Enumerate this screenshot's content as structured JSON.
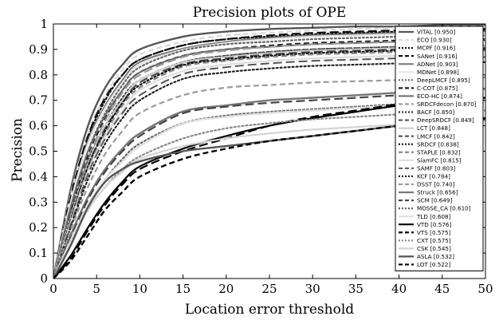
{
  "chart_data": {
    "type": "line",
    "title": "Precision plots of OPE",
    "xlabel": "Location error threshold",
    "ylabel": "Precision",
    "xlim": [
      0,
      50
    ],
    "ylim": [
      0,
      1
    ],
    "x_ticks": [
      "0",
      "5",
      "10",
      "15",
      "20",
      "25",
      "30",
      "35",
      "40",
      "45",
      "50"
    ],
    "y_ticks": [
      "0",
      "0.1",
      "0.2",
      "0.3",
      "0.4",
      "0.5",
      "0.6",
      "0.7",
      "0.8",
      "0.9",
      "1"
    ],
    "grid": false,
    "legend_position": "right",
    "x": [
      0,
      2,
      4,
      6,
      8,
      10,
      15,
      20,
      25,
      30,
      35,
      40,
      45,
      50
    ],
    "series": [
      {
        "name": "VITAL [0.950]",
        "color": "#555555",
        "dash": "solid",
        "width": 2.4,
        "values": [
          0,
          0.35,
          0.6,
          0.75,
          0.84,
          0.9,
          0.95,
          0.97,
          0.98,
          0.985,
          0.99,
          0.99,
          0.995,
          0.995
        ]
      },
      {
        "name": "ECO [0.930]",
        "color": "#d8d8d8",
        "dash": "dash",
        "width": 2.2,
        "values": [
          0,
          0.33,
          0.57,
          0.72,
          0.82,
          0.88,
          0.93,
          0.955,
          0.965,
          0.975,
          0.98,
          0.985,
          0.99,
          0.99
        ]
      },
      {
        "name": "MCPF [0.916]",
        "color": "#111111",
        "dash": "dot",
        "width": 2.2,
        "values": [
          0,
          0.3,
          0.55,
          0.7,
          0.8,
          0.86,
          0.916,
          0.94,
          0.95,
          0.96,
          0.965,
          0.97,
          0.975,
          0.975
        ]
      },
      {
        "name": "SANet [0.916]",
        "color": "#111111",
        "dash": "dashlong",
        "width": 2.2,
        "values": [
          0,
          0.32,
          0.56,
          0.71,
          0.8,
          0.86,
          0.916,
          0.94,
          0.955,
          0.965,
          0.97,
          0.975,
          0.98,
          0.98
        ]
      },
      {
        "name": "ADNet [0.903]",
        "color": "#777777",
        "dash": "solid",
        "width": 2.0,
        "values": [
          0,
          0.3,
          0.54,
          0.68,
          0.78,
          0.85,
          0.903,
          0.93,
          0.945,
          0.955,
          0.96,
          0.965,
          0.97,
          0.97
        ]
      },
      {
        "name": "MDNet [0.898]",
        "color": "#e6e6e6",
        "dash": "solid",
        "width": 2.2,
        "values": [
          0,
          0.3,
          0.53,
          0.67,
          0.77,
          0.84,
          0.898,
          0.925,
          0.94,
          0.95,
          0.955,
          0.96,
          0.965,
          0.965
        ]
      },
      {
        "name": "DeepLMCF [0.895]",
        "color": "#666666",
        "dash": "dot",
        "width": 2.2,
        "values": [
          0,
          0.27,
          0.5,
          0.65,
          0.76,
          0.83,
          0.895,
          0.92,
          0.93,
          0.94,
          0.945,
          0.95,
          0.955,
          0.955
        ]
      },
      {
        "name": "C-COT [0.875]",
        "color": "#222222",
        "dash": "dash",
        "width": 2.2,
        "values": [
          0,
          0.26,
          0.48,
          0.63,
          0.74,
          0.81,
          0.875,
          0.9,
          0.915,
          0.925,
          0.93,
          0.935,
          0.94,
          0.94
        ]
      },
      {
        "name": "ECO-HC [0.874]",
        "color": "#6a6a6a",
        "dash": "solid",
        "width": 2.0,
        "values": [
          0,
          0.28,
          0.5,
          0.64,
          0.74,
          0.81,
          0.874,
          0.9,
          0.91,
          0.92,
          0.925,
          0.93,
          0.935,
          0.935
        ]
      },
      {
        "name": "SRDCFdecon [0.870]",
        "color": "#999999",
        "dash": "dashlong",
        "width": 2.2,
        "values": [
          0,
          0.25,
          0.47,
          0.62,
          0.73,
          0.8,
          0.87,
          0.895,
          0.91,
          0.92,
          0.925,
          0.93,
          0.935,
          0.935
        ]
      },
      {
        "name": "BACF [0.850]",
        "color": "#333333",
        "dash": "dot",
        "width": 2.2,
        "values": [
          0,
          0.25,
          0.46,
          0.6,
          0.71,
          0.78,
          0.85,
          0.875,
          0.89,
          0.9,
          0.905,
          0.91,
          0.915,
          0.915
        ]
      },
      {
        "name": "DeepSRDCF [0.849]",
        "color": "#555555",
        "dash": "dash",
        "width": 2.2,
        "values": [
          0,
          0.24,
          0.45,
          0.6,
          0.7,
          0.78,
          0.849,
          0.875,
          0.89,
          0.9,
          0.905,
          0.91,
          0.915,
          0.915
        ]
      },
      {
        "name": "LCT [0.848]",
        "color": "#d0d0d0",
        "dash": "solid",
        "width": 2.2,
        "values": [
          0,
          0.24,
          0.45,
          0.6,
          0.7,
          0.78,
          0.848,
          0.87,
          0.885,
          0.895,
          0.9,
          0.905,
          0.91,
          0.91
        ]
      },
      {
        "name": "LMCF [0.842]",
        "color": "#444444",
        "dash": "dashlong",
        "width": 2.0,
        "values": [
          0,
          0.23,
          0.44,
          0.59,
          0.69,
          0.77,
          0.842,
          0.865,
          0.88,
          0.89,
          0.895,
          0.9,
          0.905,
          0.905
        ]
      },
      {
        "name": "SRDCF [0.838]",
        "color": "#111111",
        "dash": "dot",
        "width": 2.2,
        "values": [
          0,
          0.23,
          0.44,
          0.58,
          0.69,
          0.76,
          0.838,
          0.86,
          0.875,
          0.885,
          0.89,
          0.895,
          0.9,
          0.9
        ]
      },
      {
        "name": "STAPLE [0.832]",
        "color": "#888888",
        "dash": "dash",
        "width": 2.2,
        "values": [
          0,
          0.22,
          0.43,
          0.57,
          0.68,
          0.75,
          0.832,
          0.855,
          0.87,
          0.88,
          0.885,
          0.89,
          0.895,
          0.895
        ]
      },
      {
        "name": "SiamFC [0.815]",
        "color": "#dddddd",
        "dash": "solid",
        "width": 2.2,
        "values": [
          0,
          0.22,
          0.42,
          0.56,
          0.66,
          0.74,
          0.815,
          0.84,
          0.855,
          0.865,
          0.87,
          0.875,
          0.88,
          0.88
        ]
      },
      {
        "name": "SAMF [0.803]",
        "color": "#555555",
        "dash": "dashlong",
        "width": 2.0,
        "values": [
          0,
          0.21,
          0.41,
          0.55,
          0.65,
          0.72,
          0.803,
          0.83,
          0.845,
          0.855,
          0.86,
          0.865,
          0.87,
          0.87
        ]
      },
      {
        "name": "KCF [0.784]",
        "color": "#222222",
        "dash": "dot",
        "width": 2.2,
        "values": [
          0,
          0.2,
          0.39,
          0.53,
          0.63,
          0.7,
          0.784,
          0.81,
          0.825,
          0.835,
          0.84,
          0.845,
          0.85,
          0.85
        ]
      },
      {
        "name": "DSST [0.740]",
        "color": "#9a9a9a",
        "dash": "dash",
        "width": 2.2,
        "values": [
          0,
          0.19,
          0.36,
          0.49,
          0.58,
          0.65,
          0.72,
          0.75,
          0.76,
          0.77,
          0.775,
          0.78,
          0.79,
          0.79
        ]
      },
      {
        "name": "Struck [0.656]",
        "color": "#777777",
        "dash": "solid",
        "width": 2.4,
        "values": [
          0,
          0.17,
          0.32,
          0.43,
          0.51,
          0.57,
          0.656,
          0.68,
          0.7,
          0.71,
          0.72,
          0.73,
          0.74,
          0.745
        ]
      },
      {
        "name": "SCM [0.649]",
        "color": "#444444",
        "dash": "dashlong",
        "width": 2.2,
        "values": [
          0,
          0.16,
          0.31,
          0.42,
          0.5,
          0.56,
          0.649,
          0.675,
          0.69,
          0.7,
          0.71,
          0.72,
          0.73,
          0.735
        ]
      },
      {
        "name": "MOSSE_CA [0.610]",
        "color": "#666666",
        "dash": "dot",
        "width": 2.2,
        "values": [
          0,
          0.15,
          0.29,
          0.39,
          0.47,
          0.53,
          0.61,
          0.64,
          0.655,
          0.665,
          0.675,
          0.685,
          0.695,
          0.7
        ]
      },
      {
        "name": "TLD [0.608]",
        "color": "#e0e0e0",
        "dash": "solid",
        "width": 2.4,
        "values": [
          0,
          0.15,
          0.29,
          0.39,
          0.46,
          0.52,
          0.608,
          0.635,
          0.65,
          0.66,
          0.67,
          0.68,
          0.69,
          0.695
        ]
      },
      {
        "name": "VTD [0.576]",
        "color": "#000000",
        "dash": "solid",
        "width": 2.2,
        "values": [
          0,
          0.09,
          0.2,
          0.3,
          0.38,
          0.44,
          0.51,
          0.56,
          0.6,
          0.63,
          0.655,
          0.68,
          0.7,
          0.71
        ]
      },
      {
        "name": "VTS [0.575]",
        "color": "#000000",
        "dash": "dashlong",
        "width": 2.2,
        "values": [
          0,
          0.08,
          0.19,
          0.29,
          0.37,
          0.43,
          0.5,
          0.55,
          0.6,
          0.635,
          0.66,
          0.685,
          0.705,
          0.72
        ]
      },
      {
        "name": "CXT [0.575]",
        "color": "#888888",
        "dash": "dot",
        "width": 2.2,
        "values": [
          0,
          0.14,
          0.27,
          0.36,
          0.43,
          0.48,
          0.55,
          0.59,
          0.61,
          0.625,
          0.635,
          0.645,
          0.655,
          0.66
        ]
      },
      {
        "name": "CSK [0.545]",
        "color": "#d4d4d4",
        "dash": "solid",
        "width": 2.2,
        "values": [
          0,
          0.14,
          0.27,
          0.36,
          0.42,
          0.47,
          0.52,
          0.55,
          0.57,
          0.585,
          0.595,
          0.605,
          0.615,
          0.62
        ]
      },
      {
        "name": "ASLA [0.532]",
        "color": "#555555",
        "dash": "solid",
        "width": 2.4,
        "values": [
          0,
          0.13,
          0.28,
          0.38,
          0.43,
          0.46,
          0.5,
          0.52,
          0.54,
          0.56,
          0.58,
          0.6,
          0.615,
          0.625
        ]
      },
      {
        "name": "LOT [0.522]",
        "color": "#000000",
        "dash": "dash",
        "width": 2.4,
        "values": [
          0,
          0.07,
          0.17,
          0.27,
          0.34,
          0.4,
          0.47,
          0.51,
          0.54,
          0.56,
          0.58,
          0.6,
          0.615,
          0.63
        ]
      }
    ]
  }
}
